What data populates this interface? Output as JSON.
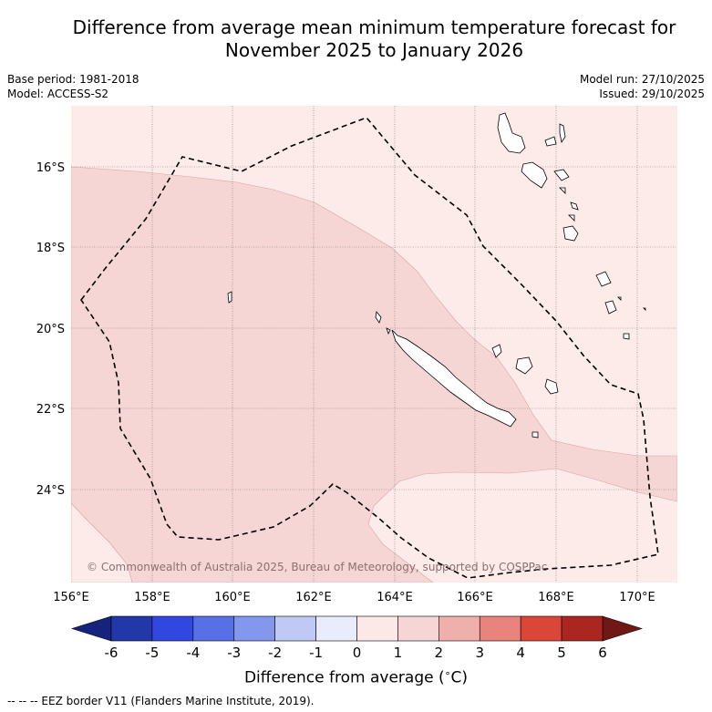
{
  "title": {
    "line1": "Difference from average mean minimum temperature forecast for",
    "line2": "November 2025 to January 2026"
  },
  "meta": {
    "base_period": "Base period: 1981-2018",
    "model": "Model: ACCESS-S2",
    "model_run": "Model run: 27/10/2025",
    "issued": "Issued: 29/10/2025"
  },
  "map": {
    "lon_ticks": [
      "156°E",
      "158°E",
      "160°E",
      "162°E",
      "164°E",
      "166°E",
      "168°E",
      "170°E"
    ],
    "lat_ticks": [
      "16°S",
      "18°S",
      "20°S",
      "22°S",
      "24°S"
    ],
    "lon_range": [
      156,
      171
    ],
    "lat_range": [
      -26.2,
      -14.4
    ],
    "copyright": "© Commonwealth of Australia 2025, Bureau of Meteorology, supported by COSPPac",
    "zones": [
      {
        "name": "anomaly-0-to-1",
        "range": [
          0,
          1
        ]
      },
      {
        "name": "anomaly-1-to-2",
        "range": [
          1,
          2
        ]
      }
    ]
  },
  "colorbar": {
    "ticks": [
      "-6",
      "-5",
      "-4",
      "-3",
      "-2",
      "-1",
      "0",
      "1",
      "2",
      "3",
      "4",
      "5",
      "6"
    ],
    "colors": [
      "#2237a8",
      "#3047e0",
      "#5870e6",
      "#8397ec",
      "#c0c8f5",
      "#e8ecfb",
      "#fce8e6",
      "#f5d6d4",
      "#efafab",
      "#e8847b",
      "#da4638",
      "#ab2620"
    ],
    "low_extend_color": "#16237c",
    "high_extend_color": "#701816",
    "label": "Difference from average ( C)",
    "label_prefix": "Difference from average (",
    "label_degree": "∘",
    "label_suffix": "C)"
  },
  "footnote": "-- -- -- EEZ border V11 (Flanders Marine Institute, 2019)."
}
